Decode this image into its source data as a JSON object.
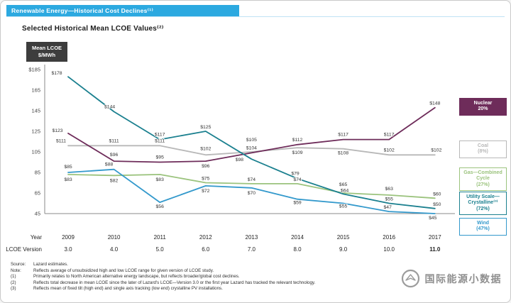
{
  "page": {
    "title": "Renewable Energy—Historical Cost Declines⁽¹⁾"
  },
  "chart_data": {
    "type": "line",
    "title": "Selected Historical Mean LCOE Values⁽²⁾",
    "grid": false,
    "legend_position": "right",
    "x": {
      "year_label": "Year",
      "years": [
        "2009",
        "2010",
        "2011",
        "2012",
        "2013",
        "2014",
        "2015",
        "2016",
        "2017"
      ],
      "version_label": "LCOE  Version",
      "versions": [
        "3.0",
        "4.0",
        "5.0",
        "6.0",
        "7.0",
        "8.0",
        "9.0",
        "10.0",
        "11.0"
      ]
    },
    "y": {
      "axis_label_lines": [
        "Mean LCOE",
        "$/MWh"
      ],
      "ylim": [
        45,
        185
      ],
      "ticks": [
        {
          "label": "$185",
          "value": 185
        },
        {
          "label": "165",
          "value": 165
        },
        {
          "label": "145",
          "value": 145
        },
        {
          "label": "125",
          "value": 125
        },
        {
          "label": "105",
          "value": 105
        },
        {
          "label": "85",
          "value": 85
        },
        {
          "label": "65",
          "value": 65
        },
        {
          "label": "45",
          "value": 45
        }
      ]
    },
    "series": [
      {
        "name": "Nuclear",
        "color": "#6E2C5A",
        "change": "20%",
        "legend": "Nuclear\n20%",
        "legend_filled": true,
        "values": [
          123,
          96,
          95,
          96,
          104,
          112,
          117,
          117,
          148
        ],
        "label_offsets": [
          [
            -15,
            -2
          ],
          [
            0,
            -7
          ],
          [
            0,
            -5
          ],
          [
            0,
            9
          ],
          [
            0,
            -5
          ],
          [
            0,
            -5
          ],
          [
            0,
            -5
          ],
          [
            0,
            -5
          ],
          [
            0,
            -4
          ]
        ]
      },
      {
        "name": "Coal",
        "color": "#B8B8B8",
        "change": "(8%)",
        "legend": "Coal\n(8%)",
        "legend_filled": false,
        "values": [
          111,
          111,
          111,
          102,
          105,
          109,
          108,
          102,
          102
        ],
        "label_offsets": [
          [
            -10,
            -5
          ],
          [
            0,
            -5
          ],
          [
            0,
            -5
          ],
          [
            0,
            -7
          ],
          [
            0,
            -15
          ],
          [
            0,
            9
          ],
          [
            0,
            8
          ],
          [
            0,
            -5
          ],
          [
            2,
            -5
          ]
        ]
      },
      {
        "name": "Gas—Combined Cycle",
        "color": "#9BC37D",
        "change": "(27%)",
        "legend": "Gas—Combined\nCycle\n(27%)",
        "legend_filled": false,
        "values": [
          83,
          82,
          83,
          75,
          74,
          74,
          65,
          63,
          60
        ],
        "label_offsets": [
          [
            0,
            9
          ],
          [
            0,
            9
          ],
          [
            0,
            9
          ],
          [
            0,
            -4
          ],
          [
            0,
            -4
          ],
          [
            0,
            -4
          ],
          [
            0,
            -10
          ],
          [
            0,
            -7
          ],
          [
            3,
            -4
          ]
        ]
      },
      {
        "name": "Utility Scale—Crystalline",
        "color": "#1B808F",
        "change": "(72%)",
        "legend": "Utility Scale—\nCrystalline⁽³⁾\n(72%)",
        "legend_filled": false,
        "values": [
          178,
          144,
          117,
          125,
          98,
          79,
          64,
          55,
          50
        ],
        "label_offsets": [
          [
            -16,
            -3
          ],
          [
            -6,
            -5
          ],
          [
            0,
            -5
          ],
          [
            0,
            -4
          ],
          [
            -17,
            3
          ],
          [
            -3,
            -5
          ],
          [
            2,
            -3
          ],
          [
            0,
            -4
          ],
          [
            3,
            -4
          ]
        ]
      },
      {
        "name": "Wind",
        "color": "#3399CC",
        "change": "(47%)",
        "legend": "Wind\n(47%)",
        "legend_filled": false,
        "values": [
          85,
          88,
          56,
          72,
          70,
          59,
          55,
          47,
          45
        ],
        "label_offsets": [
          [
            0,
            -6
          ],
          [
            -7,
            -5
          ],
          [
            0,
            8
          ],
          [
            0,
            9
          ],
          [
            0,
            9
          ],
          [
            0,
            7
          ],
          [
            0,
            6
          ],
          [
            -2,
            -4
          ],
          [
            -3,
            8
          ]
        ]
      }
    ]
  },
  "footnotes": [
    {
      "label": "Source:",
      "text": "Lazard estimates."
    },
    {
      "label": "Note:",
      "text": "Reflects average of unsubsidized high and low LCOE  range for given version of LCOE  study."
    },
    {
      "label": "(1)",
      "text": "Primarily relates to North  American alternative energy landscape, but reflects broader/global cost declines."
    },
    {
      "label": "(2)",
      "text": "Reflects total decrease in mean  LCOE  since the later of Lazard's LCOE—Version 3.0 or the first year Lazard has tracked the relevant technology."
    },
    {
      "label": "(3)",
      "text": "Reflects mean of fixed tilt (high end) and single axis tracking (low end) crystalline PV installations."
    }
  ],
  "watermark": {
    "text": "国际能源小数据"
  }
}
